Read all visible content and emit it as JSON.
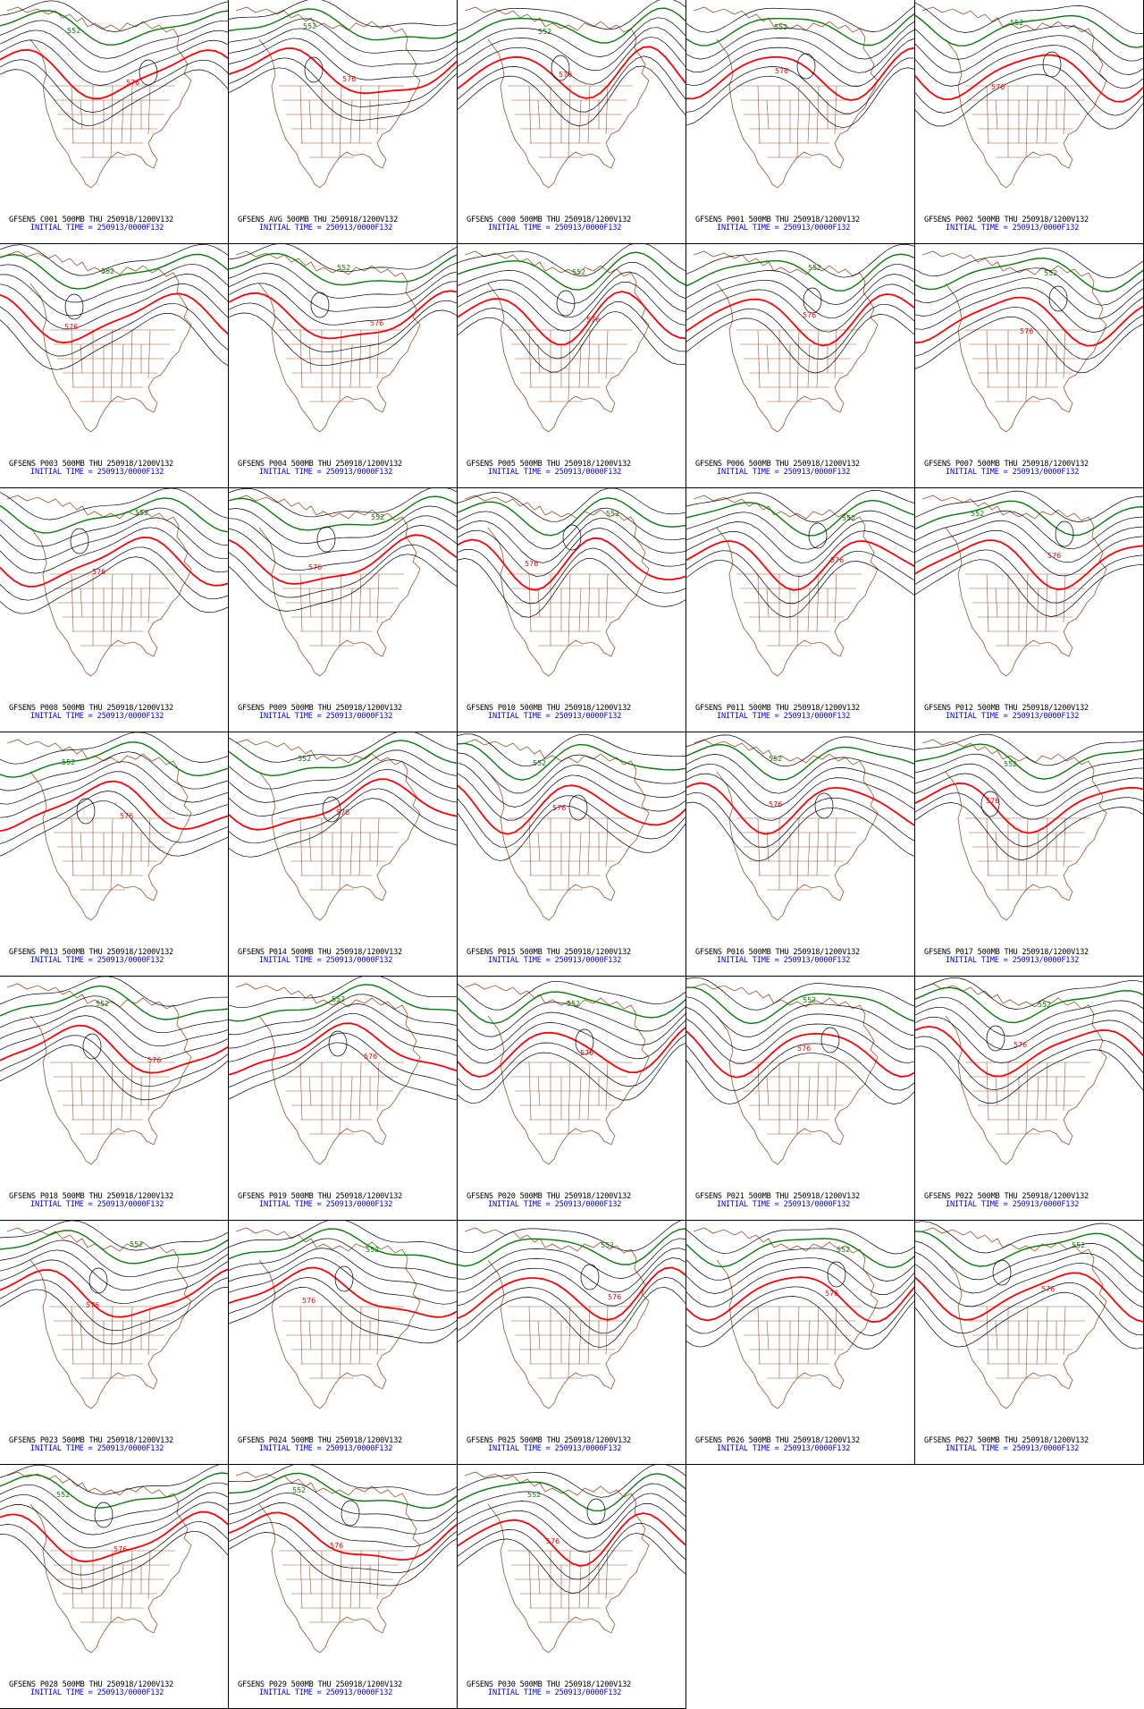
{
  "contour_labels": {
    "low": "552",
    "high": "576"
  },
  "colors": {
    "geopot_contour": "#000000",
    "contour_552": "#008000",
    "contour_576": "#ff0000",
    "geography": "#a0522d",
    "caption_main": "#000000",
    "caption_time": "#0000ff"
  },
  "panels": [
    {
      "line1": "GFSENS C001 500MB THU 250918/1200V132",
      "line2": "INITIAL TIME = 250913/0000F132"
    },
    {
      "line1": "GFSENS AVG 500MB THU 250918/1200V132",
      "line2": "INITIAL TIME = 250913/0000F132"
    },
    {
      "line1": "GFSENS C000 500MB THU 250918/1200V132",
      "line2": "INITIAL TIME = 250913/0000F132"
    },
    {
      "line1": "GFSENS P001 500MB THU 250918/1200V132",
      "line2": "INITIAL TIME = 250913/0000F132"
    },
    {
      "line1": "GFSENS P002 500MB THU 250918/1200V132",
      "line2": "INITIAL TIME = 250913/0000F132"
    },
    {
      "line1": "GFSENS P003 500MB THU 250918/1200V132",
      "line2": "INITIAL TIME = 250913/0000F132"
    },
    {
      "line1": "GFSENS P004 500MB THU 250918/1200V132",
      "line2": "INITIAL TIME = 250913/0000F132"
    },
    {
      "line1": "GFSENS P005 500MB THU 250918/1200V132",
      "line2": "INITIAL TIME = 250913/0000F132"
    },
    {
      "line1": "GFSENS P006 500MB THU 250918/1200V132",
      "line2": "INITIAL TIME = 250913/0000F132"
    },
    {
      "line1": "GFSENS P007 500MB THU 250918/1200V132",
      "line2": "INITIAL TIME = 250913/0000F132"
    },
    {
      "line1": "GFSENS P008 500MB THU 250918/1200V132",
      "line2": "INITIAL TIME = 250913/0000F132"
    },
    {
      "line1": "GFSENS P009 500MB THU 250918/1200V132",
      "line2": "INITIAL TIME = 250913/0000F132"
    },
    {
      "line1": "GFSENS P010 500MB THU 250918/1200V132",
      "line2": "INITIAL TIME = 250913/0000F132"
    },
    {
      "line1": "GFSENS P011 500MB THU 250918/1200V132",
      "line2": "INITIAL TIME = 250913/0000F132"
    },
    {
      "line1": "GFSENS P012 500MB THU 250918/1200V132",
      "line2": "INITIAL TIME = 250913/0000F132"
    },
    {
      "line1": "GFSENS P013 500MB THU 250918/1200V132",
      "line2": "INITIAL TIME = 250913/0000F132"
    },
    {
      "line1": "GFSENS P014 500MB THU 250918/1200V132",
      "line2": "INITIAL TIME = 250913/0000F132"
    },
    {
      "line1": "GFSENS P015 500MB THU 250918/1200V132",
      "line2": "INITIAL TIME = 250913/0000F132"
    },
    {
      "line1": "GFSENS P016 500MB THU 250918/1200V132",
      "line2": "INITIAL TIME = 250913/0000F132"
    },
    {
      "line1": "GFSENS P017 500MB THU 250918/1200V132",
      "line2": "INITIAL TIME = 250913/0000F132"
    },
    {
      "line1": "GFSENS P018 500MB THU 250918/1200V132",
      "line2": "INITIAL TIME = 250913/0000F132"
    },
    {
      "line1": "GFSENS P019 500MB THU 250918/1200V132",
      "line2": "INITIAL TIME = 250913/0000F132"
    },
    {
      "line1": "GFSENS P020 500MB THU 250918/1200V132",
      "line2": "INITIAL TIME = 250913/0000F132"
    },
    {
      "line1": "GFSENS P021 500MB THU 250918/1200V132",
      "line2": "INITIAL TIME = 250913/0000F132"
    },
    {
      "line1": "GFSENS P022 500MB THU 250918/1200V132",
      "line2": "INITIAL TIME = 250913/0000F132"
    },
    {
      "line1": "GFSENS P023 500MB THU 250918/1200V132",
      "line2": "INITIAL TIME = 250913/0000F132"
    },
    {
      "line1": "GFSENS P024 500MB THU 250918/1200V132",
      "line2": "INITIAL TIME = 250913/0000F132"
    },
    {
      "line1": "GFSENS P025 500MB THU 250918/1200V132",
      "line2": "INITIAL TIME = 250913/0000F132"
    },
    {
      "line1": "GFSENS P026 500MB THU 250918/1200V132",
      "line2": "INITIAL TIME = 250913/0000F132"
    },
    {
      "line1": "GFSENS P027 500MB THU 250918/1200V132",
      "line2": "INITIAL TIME = 250913/0000F132"
    },
    {
      "line1": "GFSENS P028 500MB THU 250918/1200V132",
      "line2": "INITIAL TIME = 250913/0000F132"
    },
    {
      "line1": "GFSENS P029 500MB THU 250918/1200V132",
      "line2": "INITIAL TIME = 250913/0000F132"
    },
    {
      "line1": "GFSENS P030 500MB THU 250918/1200V132",
      "line2": "INITIAL TIME = 250913/0000F132"
    }
  ]
}
